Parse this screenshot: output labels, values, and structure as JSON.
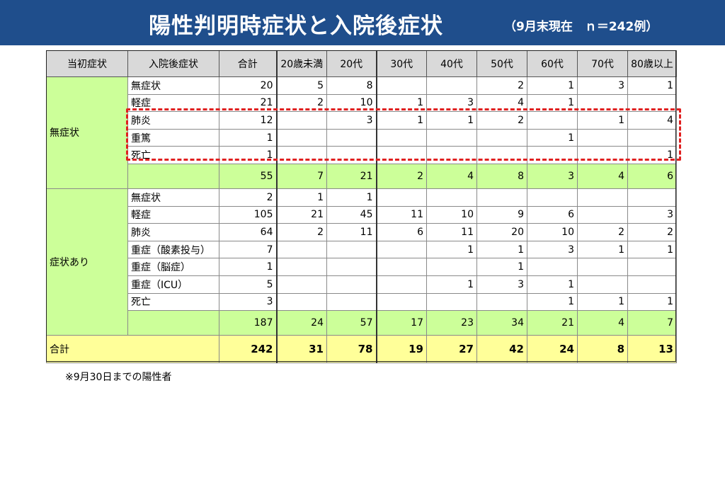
{
  "header": {
    "title": "陽性判明時症状と入院後症状",
    "subtitle": "（9月末現在　ｎ＝242例）"
  },
  "table": {
    "columns": [
      "当初症状",
      "入院後症状",
      "合計",
      "20歳未満",
      "20代",
      "30代",
      "40代",
      "50代",
      "60代",
      "70代",
      "80歳以上"
    ],
    "groups": [
      {
        "label": "無症状",
        "rows": [
          {
            "label": "無症状",
            "values": [
              "20",
              "5",
              "8",
              "",
              "",
              "2",
              "1",
              "3",
              "1"
            ]
          },
          {
            "label": "軽症",
            "values": [
              "21",
              "2",
              "10",
              "1",
              "3",
              "4",
              "1",
              "",
              ""
            ]
          },
          {
            "label": "肺炎",
            "values": [
              "12",
              "",
              "3",
              "1",
              "1",
              "2",
              "",
              "1",
              "4"
            ]
          },
          {
            "label": "重篤",
            "values": [
              "1",
              "",
              "",
              "",
              "",
              "",
              "1",
              "",
              ""
            ]
          },
          {
            "label": "死亡",
            "values": [
              "1",
              "",
              "",
              "",
              "",
              "",
              "",
              "",
              "1"
            ]
          }
        ],
        "subtotal": [
          "55",
          "7",
          "21",
          "2",
          "4",
          "8",
          "3",
          "4",
          "6"
        ]
      },
      {
        "label": "症状あり",
        "rows": [
          {
            "label": "無症状",
            "values": [
              "2",
              "1",
              "1",
              "",
              "",
              "",
              "",
              "",
              ""
            ]
          },
          {
            "label": "軽症",
            "values": [
              "105",
              "21",
              "45",
              "11",
              "10",
              "9",
              "6",
              "",
              "3"
            ]
          },
          {
            "label": "肺炎",
            "values": [
              "64",
              "2",
              "11",
              "6",
              "11",
              "20",
              "10",
              "2",
              "2"
            ]
          },
          {
            "label": "重症（酸素投与）",
            "values": [
              "7",
              "",
              "",
              "",
              "1",
              "1",
              "3",
              "1",
              "1"
            ]
          },
          {
            "label": "重症（脳症）",
            "values": [
              "1",
              "",
              "",
              "",
              "",
              "1",
              "",
              "",
              ""
            ]
          },
          {
            "label": "重症（ICU）",
            "values": [
              "5",
              "",
              "",
              "",
              "1",
              "3",
              "1",
              "",
              ""
            ]
          },
          {
            "label": "死亡",
            "values": [
              "3",
              "",
              "",
              "",
              "",
              "",
              "1",
              "1",
              "1"
            ]
          }
        ],
        "subtotal": [
          "187",
          "24",
          "57",
          "17",
          "23",
          "34",
          "21",
          "4",
          "7"
        ]
      }
    ],
    "total": {
      "label": "合計",
      "values": [
        "242",
        "31",
        "78",
        "19",
        "27",
        "42",
        "24",
        "8",
        "13"
      ]
    }
  },
  "footnote": "※9月30日までの陽性者",
  "colors": {
    "banner": "#1f4e8c",
    "header_cell": "#d9d9d9",
    "group_cell": "#ccff99",
    "total_row": "#ffff99",
    "highlight_border": "#e02020"
  }
}
